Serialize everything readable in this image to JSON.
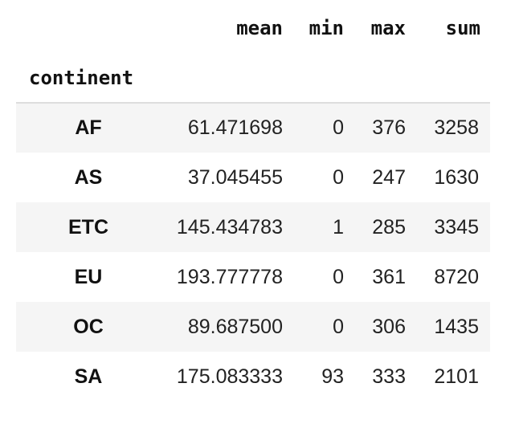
{
  "columns": [
    "mean",
    "min",
    "max",
    "sum"
  ],
  "index_name": "continent",
  "rows": [
    {
      "index": "AF",
      "mean": "61.471698",
      "min": "0",
      "max": "376",
      "sum": "3258"
    },
    {
      "index": "AS",
      "mean": "37.045455",
      "min": "0",
      "max": "247",
      "sum": "1630"
    },
    {
      "index": "ETC",
      "mean": "145.434783",
      "min": "1",
      "max": "285",
      "sum": "3345"
    },
    {
      "index": "EU",
      "mean": "193.777778",
      "min": "0",
      "max": "361",
      "sum": "8720"
    },
    {
      "index": "OC",
      "mean": "89.687500",
      "min": "0",
      "max": "306",
      "sum": "1435"
    },
    {
      "index": "SA",
      "mean": "175.083333",
      "min": "93",
      "max": "333",
      "sum": "2101"
    }
  ]
}
